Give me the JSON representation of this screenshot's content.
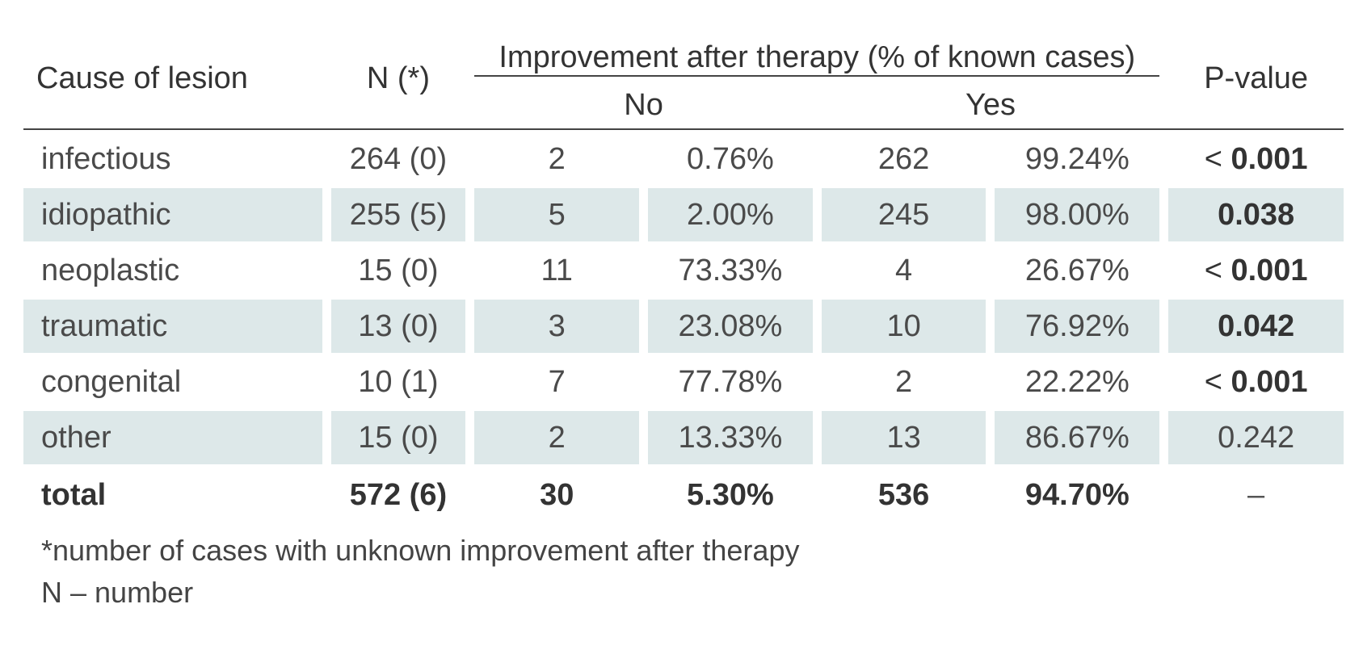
{
  "table": {
    "headers": {
      "cause": "Cause of lesion",
      "n": "N (*)",
      "group": "Improvement after therapy (% of known cases)",
      "no": "No",
      "yes": "Yes",
      "pvalue": "P-value"
    },
    "rows": [
      {
        "cause": "infectious",
        "n": "264 (0)",
        "no_n": "2",
        "no_pct": "0.76%",
        "yes_n": "262",
        "yes_pct": "99.24%",
        "p_prefix": "< ",
        "p": "0.001",
        "p_bold": true,
        "shaded": false
      },
      {
        "cause": "idiopathic",
        "n": "255 (5)",
        "no_n": "5",
        "no_pct": "2.00%",
        "yes_n": "245",
        "yes_pct": "98.00%",
        "p_prefix": "",
        "p": "0.038",
        "p_bold": true,
        "shaded": true
      },
      {
        "cause": "neoplastic",
        "n": "15 (0)",
        "no_n": "11",
        "no_pct": "73.33%",
        "yes_n": "4",
        "yes_pct": "26.67%",
        "p_prefix": "< ",
        "p": "0.001",
        "p_bold": true,
        "shaded": false
      },
      {
        "cause": "traumatic",
        "n": "13 (0)",
        "no_n": "3",
        "no_pct": "23.08%",
        "yes_n": "10",
        "yes_pct": "76.92%",
        "p_prefix": "",
        "p": "0.042",
        "p_bold": true,
        "shaded": true
      },
      {
        "cause": "congenital",
        "n": "10 (1)",
        "no_n": "7",
        "no_pct": "77.78%",
        "yes_n": "2",
        "yes_pct": "22.22%",
        "p_prefix": "< ",
        "p": "0.001",
        "p_bold": true,
        "shaded": false
      },
      {
        "cause": "other",
        "n": "15 (0)",
        "no_n": "2",
        "no_pct": "13.33%",
        "yes_n": "13",
        "yes_pct": "86.67%",
        "p_prefix": "",
        "p": "0.242",
        "p_bold": false,
        "shaded": true
      }
    ],
    "total": {
      "cause": "total",
      "n": "572 (6)",
      "no_n": "30",
      "no_pct": "5.30%",
      "yes_n": "536",
      "yes_pct": "94.70%",
      "p": "–"
    }
  },
  "footnotes": {
    "asterisk": "*number of cases with unknown improvement after therapy",
    "n_def": "N – number"
  },
  "colors": {
    "row_shade": "#dde8e9",
    "rule": "#444444"
  }
}
